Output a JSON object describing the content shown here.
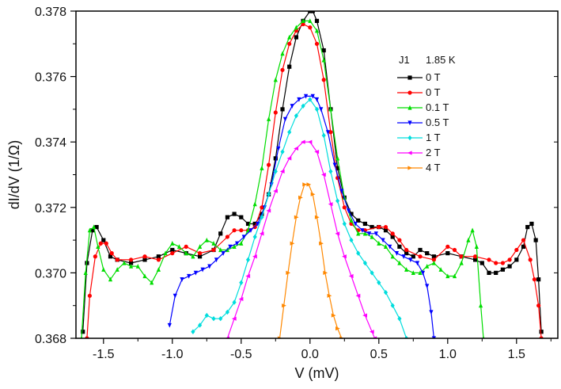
{
  "chart_data": {
    "type": "line",
    "xlabel": "V (mV)",
    "ylabel": "dI/dV (1/Ω)",
    "xlim": [
      -1.7,
      1.8
    ],
    "ylim": [
      0.368,
      0.378
    ],
    "x_ticks": [
      -1.5,
      -1.0,
      -0.5,
      0.0,
      0.5,
      1.0,
      1.5
    ],
    "x_tick_labels": [
      "-1.5",
      "-1.0",
      "-0.5",
      "0.0",
      "0.5",
      "1.0",
      "1.5"
    ],
    "y_ticks": [
      0.368,
      0.37,
      0.372,
      0.374,
      0.376,
      0.378
    ],
    "y_tick_labels": [
      "0.368",
      "0.370",
      "0.372",
      "0.374",
      "0.376",
      "0.378"
    ],
    "legend": {
      "title_left": "J1",
      "title_right": "1.85 K",
      "placement": "right"
    },
    "series": [
      {
        "name": "0 T",
        "color": "#000000",
        "marker": "square",
        "points": [
          [
            -1.65,
            0.3682
          ],
          [
            -1.62,
            0.3703
          ],
          [
            -1.58,
            0.3713
          ],
          [
            -1.55,
            0.3714
          ],
          [
            -1.5,
            0.371
          ],
          [
            -1.45,
            0.3705
          ],
          [
            -1.4,
            0.3704
          ],
          [
            -1.3,
            0.3703
          ],
          [
            -1.2,
            0.3704
          ],
          [
            -1.1,
            0.3705
          ],
          [
            -1.0,
            0.3707
          ],
          [
            -0.9,
            0.3706
          ],
          [
            -0.8,
            0.3705
          ],
          [
            -0.7,
            0.3707
          ],
          [
            -0.65,
            0.3712
          ],
          [
            -0.6,
            0.3717
          ],
          [
            -0.55,
            0.3718
          ],
          [
            -0.5,
            0.3717
          ],
          [
            -0.45,
            0.3715
          ],
          [
            -0.4,
            0.3715
          ],
          [
            -0.35,
            0.3718
          ],
          [
            -0.3,
            0.3724
          ],
          [
            -0.25,
            0.3735
          ],
          [
            -0.2,
            0.375
          ],
          [
            -0.15,
            0.3763
          ],
          [
            -0.1,
            0.3772
          ],
          [
            -0.05,
            0.3777
          ],
          [
            0.0,
            0.378
          ],
          [
            0.02,
            0.378
          ],
          [
            0.05,
            0.3777
          ],
          [
            0.1,
            0.3768
          ],
          [
            0.15,
            0.375
          ],
          [
            0.2,
            0.3732
          ],
          [
            0.25,
            0.3723
          ],
          [
            0.3,
            0.3718
          ],
          [
            0.35,
            0.3716
          ],
          [
            0.4,
            0.3715
          ],
          [
            0.45,
            0.3714
          ],
          [
            0.5,
            0.3714
          ],
          [
            0.55,
            0.3713
          ],
          [
            0.6,
            0.3711
          ],
          [
            0.65,
            0.3708
          ],
          [
            0.7,
            0.3706
          ],
          [
            0.75,
            0.3705
          ],
          [
            0.8,
            0.3707
          ],
          [
            0.85,
            0.3706
          ],
          [
            0.9,
            0.3705
          ],
          [
            1.0,
            0.3706
          ],
          [
            1.1,
            0.3705
          ],
          [
            1.2,
            0.3704
          ],
          [
            1.25,
            0.3703
          ],
          [
            1.3,
            0.37
          ],
          [
            1.35,
            0.37
          ],
          [
            1.4,
            0.3701
          ],
          [
            1.45,
            0.3702
          ],
          [
            1.5,
            0.3704
          ],
          [
            1.55,
            0.3708
          ],
          [
            1.58,
            0.3714
          ],
          [
            1.61,
            0.3715
          ],
          [
            1.64,
            0.371
          ],
          [
            1.66,
            0.3698
          ],
          [
            1.68,
            0.3682
          ]
        ]
      },
      {
        "name": "0 T",
        "color": "#ff0000",
        "marker": "circle",
        "points": [
          [
            -1.62,
            0.368
          ],
          [
            -1.6,
            0.3693
          ],
          [
            -1.56,
            0.3705
          ],
          [
            -1.52,
            0.3709
          ],
          [
            -1.48,
            0.3709
          ],
          [
            -1.44,
            0.3706
          ],
          [
            -1.4,
            0.3704
          ],
          [
            -1.3,
            0.3704
          ],
          [
            -1.2,
            0.3705
          ],
          [
            -1.1,
            0.3704
          ],
          [
            -1.0,
            0.3706
          ],
          [
            -0.9,
            0.3708
          ],
          [
            -0.8,
            0.3706
          ],
          [
            -0.7,
            0.3707
          ],
          [
            -0.6,
            0.3711
          ],
          [
            -0.55,
            0.3713
          ],
          [
            -0.5,
            0.3713
          ],
          [
            -0.45,
            0.3713
          ],
          [
            -0.4,
            0.3714
          ],
          [
            -0.35,
            0.372
          ],
          [
            -0.3,
            0.3733
          ],
          [
            -0.25,
            0.3749
          ],
          [
            -0.2,
            0.3762
          ],
          [
            -0.15,
            0.377
          ],
          [
            -0.1,
            0.3774
          ],
          [
            -0.05,
            0.3776
          ],
          [
            0.0,
            0.3775
          ],
          [
            0.05,
            0.377
          ],
          [
            0.1,
            0.3759
          ],
          [
            0.15,
            0.3743
          ],
          [
            0.2,
            0.3729
          ],
          [
            0.25,
            0.372
          ],
          [
            0.3,
            0.3715
          ],
          [
            0.35,
            0.3713
          ],
          [
            0.4,
            0.3713
          ],
          [
            0.5,
            0.3714
          ],
          [
            0.55,
            0.3714
          ],
          [
            0.6,
            0.3712
          ],
          [
            0.65,
            0.371
          ],
          [
            0.7,
            0.3707
          ],
          [
            0.8,
            0.3705
          ],
          [
            0.9,
            0.3704
          ],
          [
            1.0,
            0.3708
          ],
          [
            1.05,
            0.3707
          ],
          [
            1.1,
            0.3705
          ],
          [
            1.2,
            0.3705
          ],
          [
            1.3,
            0.3704
          ],
          [
            1.35,
            0.3703
          ],
          [
            1.4,
            0.3703
          ],
          [
            1.45,
            0.3704
          ],
          [
            1.5,
            0.3707
          ],
          [
            1.55,
            0.371
          ],
          [
            1.6,
            0.3704
          ],
          [
            1.63,
            0.3698
          ],
          [
            1.66,
            0.369
          ],
          [
            1.68,
            0.368
          ]
        ]
      },
      {
        "name": "0.1 T",
        "color": "#00dd00",
        "marker": "triangle-up",
        "points": [
          [
            -1.66,
            0.368
          ],
          [
            -1.63,
            0.37
          ],
          [
            -1.6,
            0.3713
          ],
          [
            -1.57,
            0.3714
          ],
          [
            -1.54,
            0.3708
          ],
          [
            -1.5,
            0.3701
          ],
          [
            -1.45,
            0.3698
          ],
          [
            -1.4,
            0.3701
          ],
          [
            -1.35,
            0.3703
          ],
          [
            -1.3,
            0.3702
          ],
          [
            -1.25,
            0.3702
          ],
          [
            -1.2,
            0.3699
          ],
          [
            -1.15,
            0.3697
          ],
          [
            -1.1,
            0.3701
          ],
          [
            -1.05,
            0.3706
          ],
          [
            -1.0,
            0.3709
          ],
          [
            -0.95,
            0.3708
          ],
          [
            -0.9,
            0.3706
          ],
          [
            -0.85,
            0.3705
          ],
          [
            -0.8,
            0.3708
          ],
          [
            -0.75,
            0.371
          ],
          [
            -0.7,
            0.3709
          ],
          [
            -0.65,
            0.3707
          ],
          [
            -0.6,
            0.3707
          ],
          [
            -0.55,
            0.3708
          ],
          [
            -0.5,
            0.3709
          ],
          [
            -0.45,
            0.3713
          ],
          [
            -0.4,
            0.3721
          ],
          [
            -0.35,
            0.3732
          ],
          [
            -0.3,
            0.3747
          ],
          [
            -0.25,
            0.3759
          ],
          [
            -0.2,
            0.3767
          ],
          [
            -0.15,
            0.3772
          ],
          [
            -0.1,
            0.3775
          ],
          [
            -0.05,
            0.3777
          ],
          [
            0.0,
            0.3777
          ],
          [
            0.05,
            0.3774
          ],
          [
            0.1,
            0.3765
          ],
          [
            0.15,
            0.375
          ],
          [
            0.2,
            0.3735
          ],
          [
            0.25,
            0.3723
          ],
          [
            0.3,
            0.3716
          ],
          [
            0.35,
            0.3712
          ],
          [
            0.4,
            0.3712
          ],
          [
            0.45,
            0.3711
          ],
          [
            0.5,
            0.3709
          ],
          [
            0.55,
            0.3708
          ],
          [
            0.6,
            0.3705
          ],
          [
            0.65,
            0.3703
          ],
          [
            0.7,
            0.3701
          ],
          [
            0.75,
            0.37
          ],
          [
            0.8,
            0.37
          ],
          [
            0.85,
            0.3702
          ],
          [
            0.9,
            0.3703
          ],
          [
            0.95,
            0.3701
          ],
          [
            1.0,
            0.3699
          ],
          [
            1.05,
            0.3699
          ],
          [
            1.1,
            0.3703
          ],
          [
            1.15,
            0.371
          ],
          [
            1.18,
            0.3713
          ],
          [
            1.21,
            0.3708
          ],
          [
            1.24,
            0.369
          ],
          [
            1.26,
            0.368
          ]
        ]
      },
      {
        "name": "0.5 T",
        "color": "#0000ff",
        "marker": "triangle-down",
        "points": [
          [
            -1.02,
            0.3684
          ],
          [
            -0.98,
            0.3693
          ],
          [
            -0.93,
            0.3698
          ],
          [
            -0.88,
            0.3699
          ],
          [
            -0.83,
            0.37
          ],
          [
            -0.78,
            0.3701
          ],
          [
            -0.73,
            0.3702
          ],
          [
            -0.68,
            0.3704
          ],
          [
            -0.63,
            0.3706
          ],
          [
            -0.58,
            0.3708
          ],
          [
            -0.53,
            0.3709
          ],
          [
            -0.48,
            0.3711
          ],
          [
            -0.43,
            0.3713
          ],
          [
            -0.38,
            0.3715
          ],
          [
            -0.33,
            0.372
          ],
          [
            -0.28,
            0.3727
          ],
          [
            -0.23,
            0.3738
          ],
          [
            -0.18,
            0.3747
          ],
          [
            -0.13,
            0.3751
          ],
          [
            -0.08,
            0.3753
          ],
          [
            -0.03,
            0.3754
          ],
          [
            0.02,
            0.3754
          ],
          [
            0.05,
            0.3753
          ],
          [
            0.08,
            0.375
          ],
          [
            0.13,
            0.3743
          ],
          [
            0.18,
            0.3733
          ],
          [
            0.23,
            0.3725
          ],
          [
            0.28,
            0.3719
          ],
          [
            0.33,
            0.3715
          ],
          [
            0.38,
            0.3713
          ],
          [
            0.43,
            0.3712
          ],
          [
            0.48,
            0.3712
          ],
          [
            0.53,
            0.371
          ],
          [
            0.58,
            0.3708
          ],
          [
            0.63,
            0.3706
          ],
          [
            0.68,
            0.3705
          ],
          [
            0.73,
            0.3704
          ],
          [
            0.78,
            0.3703
          ],
          [
            0.82,
            0.37
          ],
          [
            0.85,
            0.3696
          ],
          [
            0.88,
            0.3688
          ],
          [
            0.9,
            0.368
          ]
        ]
      },
      {
        "name": "1 T",
        "color": "#00dddd",
        "marker": "diamond",
        "points": [
          [
            -0.85,
            0.3682
          ],
          [
            -0.8,
            0.3684
          ],
          [
            -0.75,
            0.3687
          ],
          [
            -0.7,
            0.3686
          ],
          [
            -0.65,
            0.3686
          ],
          [
            -0.6,
            0.3688
          ],
          [
            -0.55,
            0.3691
          ],
          [
            -0.5,
            0.3697
          ],
          [
            -0.45,
            0.3704
          ],
          [
            -0.4,
            0.3711
          ],
          [
            -0.35,
            0.3717
          ],
          [
            -0.3,
            0.3724
          ],
          [
            -0.25,
            0.3731
          ],
          [
            -0.2,
            0.3737
          ],
          [
            -0.15,
            0.3743
          ],
          [
            -0.1,
            0.3748
          ],
          [
            -0.05,
            0.3751
          ],
          [
            0.0,
            0.3753
          ],
          [
            0.05,
            0.375
          ],
          [
            0.1,
            0.3742
          ],
          [
            0.15,
            0.3731
          ],
          [
            0.2,
            0.3722
          ],
          [
            0.25,
            0.3715
          ],
          [
            0.3,
            0.371
          ],
          [
            0.35,
            0.3706
          ],
          [
            0.4,
            0.3703
          ],
          [
            0.45,
            0.37
          ],
          [
            0.5,
            0.3697
          ],
          [
            0.55,
            0.3694
          ],
          [
            0.6,
            0.369
          ],
          [
            0.65,
            0.3686
          ],
          [
            0.7,
            0.368
          ]
        ]
      },
      {
        "name": "2 T",
        "color": "#ff00ff",
        "marker": "triangle-left",
        "points": [
          [
            -0.6,
            0.368
          ],
          [
            -0.55,
            0.3686
          ],
          [
            -0.5,
            0.3692
          ],
          [
            -0.45,
            0.3699
          ],
          [
            -0.4,
            0.3705
          ],
          [
            -0.35,
            0.3712
          ],
          [
            -0.3,
            0.3719
          ],
          [
            -0.25,
            0.3725
          ],
          [
            -0.2,
            0.3731
          ],
          [
            -0.15,
            0.3735
          ],
          [
            -0.1,
            0.3738
          ],
          [
            -0.05,
            0.374
          ],
          [
            0.0,
            0.374
          ],
          [
            0.05,
            0.3737
          ],
          [
            0.1,
            0.373
          ],
          [
            0.15,
            0.3721
          ],
          [
            0.2,
            0.3712
          ],
          [
            0.25,
            0.3705
          ],
          [
            0.3,
            0.3699
          ],
          [
            0.35,
            0.3693
          ],
          [
            0.4,
            0.3687
          ],
          [
            0.45,
            0.3682
          ],
          [
            0.47,
            0.368
          ]
        ]
      },
      {
        "name": "4 T",
        "color": "#ff8800",
        "marker": "triangle-right",
        "points": [
          [
            -0.22,
            0.368
          ],
          [
            -0.19,
            0.369
          ],
          [
            -0.16,
            0.37
          ],
          [
            -0.13,
            0.3709
          ],
          [
            -0.1,
            0.3717
          ],
          [
            -0.07,
            0.3723
          ],
          [
            -0.04,
            0.3727
          ],
          [
            -0.01,
            0.3727
          ],
          [
            0.02,
            0.3724
          ],
          [
            0.05,
            0.3717
          ],
          [
            0.08,
            0.3709
          ],
          [
            0.11,
            0.37
          ],
          [
            0.14,
            0.3693
          ],
          [
            0.17,
            0.3687
          ],
          [
            0.2,
            0.3683
          ],
          [
            0.23,
            0.368
          ]
        ]
      }
    ]
  }
}
